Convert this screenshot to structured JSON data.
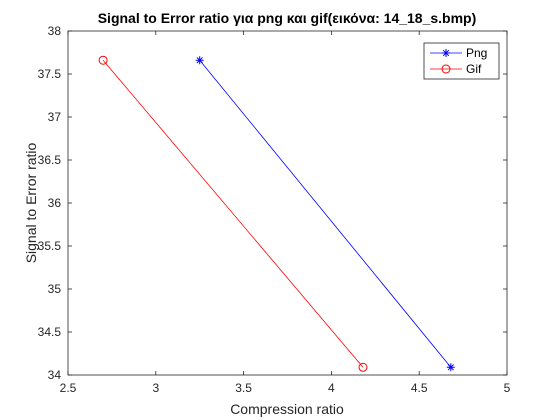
{
  "chart_data": {
    "type": "line",
    "title": "Signal to Error ratio για png και gif(εικόνα: 14_18_s.bmp)",
    "xlabel": "Compression ratio",
    "ylabel": "Signal to Error ratio",
    "xlim": [
      2.5,
      5
    ],
    "ylim": [
      34,
      38
    ],
    "xticks": [
      "2.5",
      "3",
      "3.5",
      "4",
      "4.5",
      "5"
    ],
    "yticks": [
      "34",
      "34.5",
      "35",
      "35.5",
      "36",
      "36.5",
      "37",
      "37.5",
      "38"
    ],
    "grid": false,
    "legend_position": "top-right",
    "series": [
      {
        "name": "Png",
        "color": "#0000ff",
        "marker": "asterisk",
        "x": [
          3.25,
          4.68
        ],
        "y": [
          37.66,
          34.09
        ]
      },
      {
        "name": "Gif",
        "color": "#ff0000",
        "marker": "circle",
        "x": [
          2.7,
          4.18
        ],
        "y": [
          37.66,
          34.09
        ]
      }
    ]
  }
}
